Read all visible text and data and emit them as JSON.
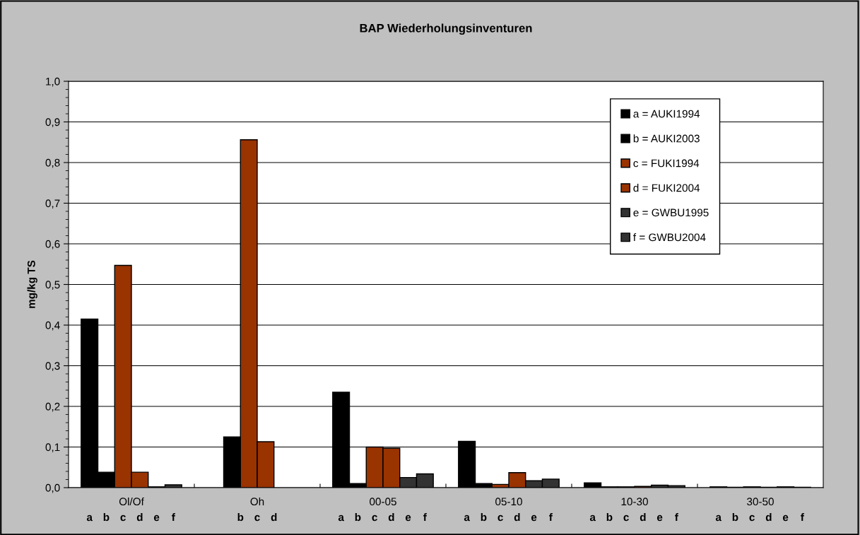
{
  "chart_data": {
    "type": "bar",
    "title": "BAP Wiederholungsinventuren",
    "ylabel": "mg/kg TS",
    "categories": [
      "Ol/Of",
      "Oh",
      "00-05",
      "05-10",
      "10-30",
      "30-50"
    ],
    "series": [
      {
        "name": "a = AUKI1994",
        "color": "#000000",
        "values": [
          0.415,
          null,
          0.235,
          0.114,
          0.012,
          0.002
        ]
      },
      {
        "name": "b = AUKI2003",
        "color": "#000000",
        "values": [
          0.038,
          0.125,
          0.01,
          0.01,
          0.002,
          0.001
        ]
      },
      {
        "name": "c = FUKI1994",
        "color": "#993300",
        "values": [
          0.547,
          0.856,
          0.1,
          0.008,
          0.002,
          0.002
        ]
      },
      {
        "name": "d = FUKI2004",
        "color": "#993300",
        "values": [
          0.038,
          0.113,
          0.097,
          0.037,
          0.003,
          0.001
        ]
      },
      {
        "name": "e = GWBU1995",
        "color": "#333333",
        "values": [
          0.002,
          null,
          0.025,
          0.017,
          0.006,
          0.002
        ]
      },
      {
        "name": "f = GWBU2004",
        "color": "#333333",
        "values": [
          0.007,
          null,
          0.034,
          0.021,
          0.005,
          0.001
        ]
      }
    ],
    "ylim": [
      0,
      1
    ],
    "yticks": [
      {
        "value": 0,
        "label": "0,0"
      },
      {
        "value": 0.1,
        "label": "0,1"
      },
      {
        "value": 0.2,
        "label": "0,2"
      },
      {
        "value": 0.3,
        "label": "0,3"
      },
      {
        "value": 0.4,
        "label": "0,4"
      },
      {
        "value": 0.5,
        "label": "0,5"
      },
      {
        "value": 0.6,
        "label": "0,6"
      },
      {
        "value": 0.7,
        "label": "0,7"
      },
      {
        "value": 0.8,
        "label": "0,8"
      },
      {
        "value": 0.9,
        "label": "0,9"
      },
      {
        "value": 1,
        "label": "1,0"
      }
    ],
    "annotations": [
      "a b c d e f",
      "b c d",
      "a b c d e f",
      "a b c d e f",
      "a b c d e f",
      "a b c d e f"
    ],
    "grid": "y",
    "legend": "top right"
  }
}
